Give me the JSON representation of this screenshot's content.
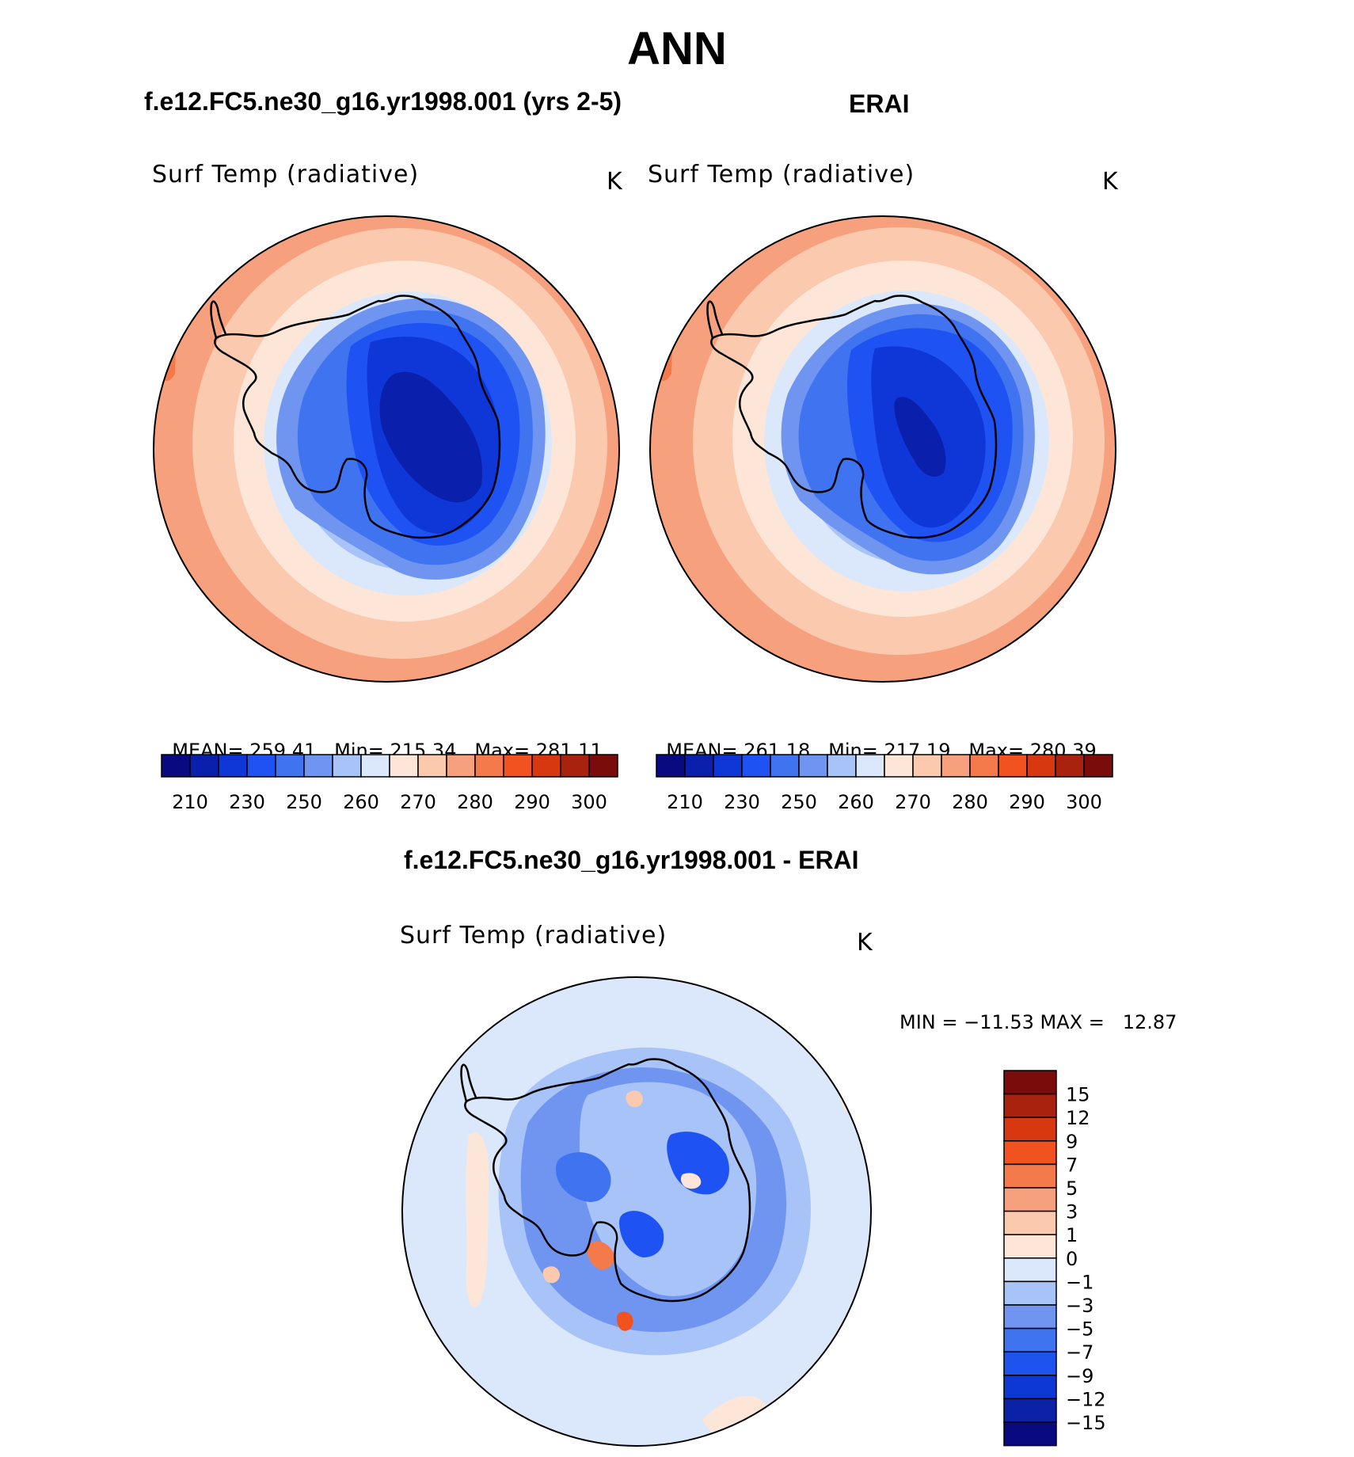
{
  "page": {
    "season": "ANN",
    "top_left_title": "f.e12.FC5.ne30_g16.yr1998.001 (yrs 2-5)",
    "top_right_title": "ERAI",
    "bottom_title": "f.e12.FC5.ne30_g16.yr1998.001 - ERAI"
  },
  "colors": {
    "abs_scale": [
      "#0a0a80",
      "#0b1fad",
      "#0f36d6",
      "#1f52f2",
      "#3f73f0",
      "#6f95f0",
      "#a8c3f7",
      "#dbe8fb",
      "#fde6d8",
      "#fbc9ae",
      "#f6a07e",
      "#f47a4c",
      "#f2521f",
      "#d8380f",
      "#a8220d",
      "#7a0c0c"
    ],
    "diff_scale": [
      "#0a0a80",
      "#0b22a8",
      "#0e38d4",
      "#1e53ee",
      "#3f73f0",
      "#6f95f0",
      "#a8c3f7",
      "#dbe8fb",
      "#fde6d8",
      "#fbc9ae",
      "#f6a07e",
      "#f47a4c",
      "#f2521f",
      "#d8380f",
      "#a8220d",
      "#7a0c0c"
    ]
  },
  "panels": [
    {
      "id": "model",
      "variable": "Surf Temp (radiative)",
      "units": "K",
      "stats": {
        "mean_label": "MEAN=",
        "mean": "259.41",
        "min_label": "Min=",
        "min": "215.34",
        "max_label": "Max=",
        "max": "281.11"
      },
      "colorbar_labels": [
        "210",
        "230",
        "250",
        "260",
        "270",
        "280",
        "290",
        "300"
      ]
    },
    {
      "id": "obs",
      "variable": "Surf Temp (radiative)",
      "units": "K",
      "stats": {
        "mean_label": "MEAN=",
        "mean": "261.18",
        "min_label": "Min=",
        "min": "217.19",
        "max_label": "Max=",
        "max": "280.39"
      },
      "colorbar_labels": [
        "210",
        "230",
        "250",
        "260",
        "270",
        "280",
        "290",
        "300"
      ]
    },
    {
      "id": "diff",
      "variable": "Surf Temp (radiative)",
      "units": "K",
      "minmax_text": "MIN = −11.53 MAX =   12.87",
      "colorbar_labels": [
        "15",
        "12",
        "9",
        "7",
        "5",
        "3",
        "1",
        "0",
        "−1",
        "−3",
        "−5",
        "−7",
        "−9",
        "−12",
        "−15"
      ]
    }
  ]
}
